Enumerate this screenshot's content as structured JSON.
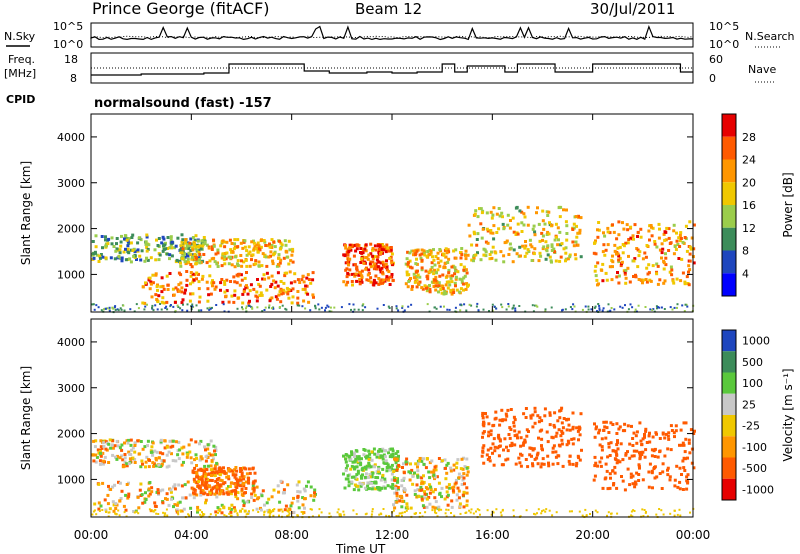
{
  "header": {
    "station": "Prince George (fitACF)",
    "beam": "Beam 12",
    "date": "30/Jul/2011"
  },
  "noise_panel": {
    "left_label": "N.Sky",
    "right_label": "N.Search",
    "left_ticks": [
      "10^5",
      "10^0"
    ],
    "right_ticks": [
      "10^5",
      "10^0"
    ]
  },
  "freq_panel": {
    "left_label_1": "Freq.",
    "left_label_2": "[MHz]",
    "left_ticks": [
      "18",
      "8"
    ],
    "right_label": "Nave",
    "right_ticks": [
      "60",
      "0"
    ],
    "cpid_label": "CPID",
    "cpid_text": "normalsound (fast) -157"
  },
  "chart_data": [
    {
      "type": "heatmap",
      "name": "power",
      "ylabel": "Slant Range [km]",
      "xlabel": "",
      "ylim": [
        180,
        4500
      ],
      "yticks": [
        "1000",
        "2000",
        "3000",
        "4000"
      ],
      "colorbar_label": "Power [dB]",
      "colorbar_ticks": [
        "28",
        "24",
        "20",
        "16",
        "12",
        "8",
        "4"
      ],
      "colorbar_colors": [
        "#e60000",
        "#ff5a00",
        "#ff9600",
        "#f0c800",
        "#9bcd4b",
        "#3c8c5a",
        "#1e46be",
        "#0000ff"
      ],
      "echo_regions": [
        {
          "t0": 0.0,
          "t1": 4.5,
          "r0": 1300,
          "r1": 1900,
          "level": 12
        },
        {
          "t0": 2.0,
          "t1": 9.0,
          "r0": 400,
          "r1": 1100,
          "level": 24
        },
        {
          "t0": 3.5,
          "t1": 8.0,
          "r0": 1200,
          "r1": 1800,
          "level": 20
        },
        {
          "t0": 10.0,
          "t1": 12.0,
          "r0": 800,
          "r1": 1700,
          "level": 26
        },
        {
          "t0": 12.5,
          "t1": 15.0,
          "r0": 600,
          "r1": 1600,
          "level": 20
        },
        {
          "t0": 15.0,
          "t1": 19.5,
          "r0": 1300,
          "r1": 2500,
          "level": 18
        },
        {
          "t0": 20.0,
          "t1": 24.0,
          "r0": 800,
          "r1": 2200,
          "level": 22
        }
      ]
    },
    {
      "type": "heatmap",
      "name": "velocity",
      "ylabel": "Slant Range [km]",
      "xlabel": "Time UT",
      "ylim": [
        180,
        4500
      ],
      "yticks": [
        "1000",
        "2000",
        "3000",
        "4000"
      ],
      "xticks": [
        "00:00",
        "04:00",
        "08:00",
        "12:00",
        "16:00",
        "20:00",
        "00:00"
      ],
      "xlim": [
        0,
        24
      ],
      "colorbar_label": "Velocity [m s⁻¹]",
      "colorbar_ticks": [
        "1000",
        "500",
        "100",
        "25",
        "-25",
        "-100",
        "-500",
        "-1000"
      ],
      "colorbar_colors": [
        "#1e46be",
        "#3c8c5a",
        "#5ac83c",
        "#c8c8c8",
        "#f0c800",
        "#ff9600",
        "#ff5a00",
        "#e60000"
      ],
      "echo_regions": [
        {
          "t0": 0.0,
          "t1": 5.0,
          "r0": 1300,
          "r1": 1900,
          "level": 0
        },
        {
          "t0": 0.0,
          "t1": 9.0,
          "r0": 300,
          "r1": 1000,
          "level": 0
        },
        {
          "t0": 4.0,
          "t1": 6.5,
          "r0": 700,
          "r1": 1300,
          "level": -150
        },
        {
          "t0": 10.0,
          "t1": 12.2,
          "r0": 800,
          "r1": 1700,
          "level": 150
        },
        {
          "t0": 12.0,
          "t1": 15.0,
          "r0": 400,
          "r1": 1500,
          "level": 0
        },
        {
          "t0": 15.5,
          "t1": 19.5,
          "r0": 1300,
          "r1": 2600,
          "level": -300
        },
        {
          "t0": 20.0,
          "t1": 24.0,
          "r0": 800,
          "r1": 2300,
          "level": -300
        }
      ]
    }
  ]
}
